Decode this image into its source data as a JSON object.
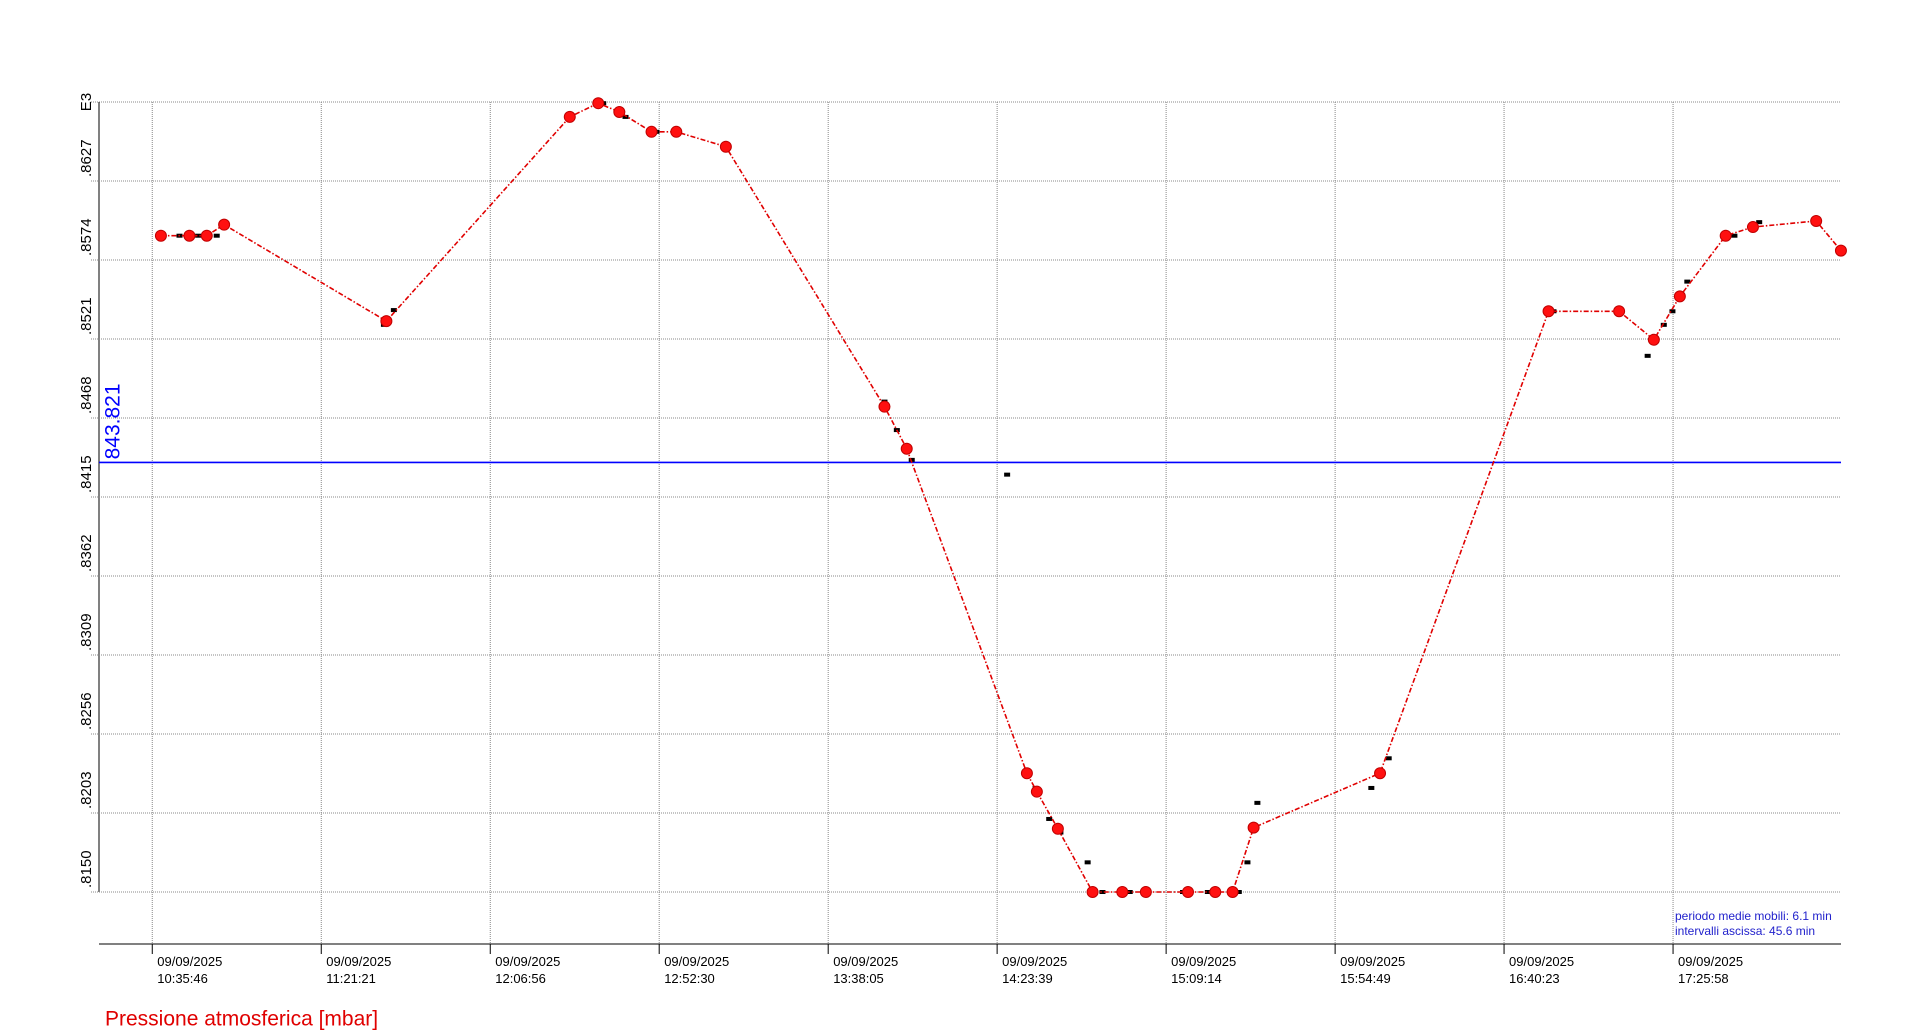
{
  "chart_data": {
    "type": "line",
    "y_multiplier": "E3",
    "ylim": [
      815.0,
      868.0
    ],
    "yticks": [
      {
        "value": 815.0,
        "label": ".8150"
      },
      {
        "value": 820.3,
        "label": ".8203"
      },
      {
        "value": 825.6,
        "label": ".8256"
      },
      {
        "value": 830.9,
        "label": ".8309"
      },
      {
        "value": 836.2,
        "label": ".8362"
      },
      {
        "value": 841.5,
        "label": ".8415"
      },
      {
        "value": 846.8,
        "label": ".8468"
      },
      {
        "value": 852.1,
        "label": ".8521"
      },
      {
        "value": 857.4,
        "label": ".8574"
      },
      {
        "value": 862.7,
        "label": ".8627"
      }
    ],
    "xlim": [
      "2025-09-09T10:21:24",
      "2025-09-09T18:11:16"
    ],
    "xticks": [
      {
        "value": "2025-09-09T10:35:46",
        "label": "09/09/2025\n10:35:46"
      },
      {
        "value": "2025-09-09T11:21:21",
        "label": "09/09/2025\n11:21:21"
      },
      {
        "value": "2025-09-09T12:06:56",
        "label": "09/09/2025\n12:06:56"
      },
      {
        "value": "2025-09-09T12:52:30",
        "label": "09/09/2025\n12:52:30"
      },
      {
        "value": "2025-09-09T13:38:05",
        "label": "09/09/2025\n13:38:05"
      },
      {
        "value": "2025-09-09T14:23:39",
        "label": "09/09/2025\n14:23:39"
      },
      {
        "value": "2025-09-09T15:09:14",
        "label": "09/09/2025\n15:09:14"
      },
      {
        "value": "2025-09-09T15:54:49",
        "label": "09/09/2025\n15:54:49"
      },
      {
        "value": "2025-09-09T16:40:23",
        "label": "09/09/2025\n16:40:23"
      },
      {
        "value": "2025-09-09T17:25:58",
        "label": "09/09/2025\n17:25:58"
      }
    ],
    "grid": true,
    "reference_line": {
      "value": 843.821,
      "color": "#0000ff"
    },
    "annotations": [
      "periodo medie mobili: 6.1 min",
      "intervalli ascissa: 45.6 min"
    ],
    "series": [
      {
        "name": "Pressione atmosferica [mbar]",
        "color": "#e00000",
        "line": true,
        "x": [
          "2025-09-09T10:38:06",
          "2025-09-09T10:45:47",
          "2025-09-09T10:50:28",
          "2025-09-09T10:55:09",
          "2025-09-09T11:38:55",
          "2025-09-09T12:28:23",
          "2025-09-09T12:36:04",
          "2025-09-09T12:41:45",
          "2025-09-09T12:50:26",
          "2025-09-09T12:57:07",
          "2025-09-09T13:10:29",
          "2025-09-09T13:53:16",
          "2025-09-09T13:59:16",
          "2025-09-09T14:31:41",
          "2025-09-09T14:34:22",
          "2025-09-09T14:40:02",
          "2025-09-09T14:49:24",
          "2025-09-09T14:57:25",
          "2025-09-09T15:03:46",
          "2025-09-09T15:15:08",
          "2025-09-09T15:22:29",
          "2025-09-09T15:27:10",
          "2025-09-09T15:32:50",
          "2025-09-09T16:06:56",
          "2025-09-09T16:52:23",
          "2025-09-09T17:11:25",
          "2025-09-09T17:20:47",
          "2025-09-09T17:27:48",
          "2025-09-09T17:40:10",
          "2025-09-09T17:47:31",
          "2025-09-09T18:04:34",
          "2025-09-09T18:11:15"
        ],
        "values": [
          859.03,
          859.03,
          859.03,
          859.77,
          853.3,
          867.0,
          867.92,
          867.33,
          866.0,
          866.0,
          865.0,
          847.56,
          844.74,
          822.97,
          821.73,
          819.24,
          815.0,
          815.0,
          815.0,
          815.0,
          815.0,
          815.0,
          819.32,
          822.97,
          853.96,
          853.96,
          852.05,
          854.96,
          859.03,
          859.61,
          860.02,
          858.03
        ]
      },
      {
        "color": "#000000",
        "line": false,
        "x": [
          "2025-09-09T10:38:06",
          "2025-09-09T10:43:07",
          "2025-09-09T10:48:08",
          "2025-09-09T10:53:09",
          "2025-09-09T10:55:09",
          "2025-09-09T11:38:15",
          "2025-09-09T11:40:56",
          "2025-09-09T12:28:23",
          "2025-09-09T12:37:24",
          "2025-09-09T12:43:25",
          "2025-09-09T12:51:46",
          "2025-09-09T12:57:47",
          "2025-09-09T13:53:16",
          "2025-09-09T13:56:36",
          "2025-09-09T14:00:37",
          "2025-09-09T14:26:21",
          "2025-09-09T14:34:02",
          "2025-09-09T14:37:42",
          "2025-09-09T14:40:43",
          "2025-09-09T14:48:04",
          "2025-09-09T14:52:04",
          "2025-09-09T14:59:25",
          "2025-09-09T15:13:47",
          "2025-09-09T15:20:29",
          "2025-09-09T15:28:50",
          "2025-09-09T15:31:10",
          "2025-09-09T15:33:51",
          "2025-09-09T16:04:35",
          "2025-09-09T16:09:16",
          "2025-09-09T16:53:43",
          "2025-09-09T17:19:07",
          "2025-09-09T17:23:28",
          "2025-09-09T17:25:48",
          "2025-09-09T17:29:49",
          "2025-09-09T17:42:31",
          "2025-09-09T17:49:12"
        ],
        "values": [
          859.03,
          859.03,
          859.03,
          859.03,
          859.94,
          853.05,
          854.04,
          867.0,
          867.92,
          867.0,
          866.0,
          866.0,
          847.9,
          845.99,
          843.99,
          843.0,
          821.98,
          819.9,
          818.99,
          816.99,
          815.0,
          815.0,
          815.0,
          815.0,
          815.0,
          816.99,
          820.98,
          821.98,
          823.97,
          853.96,
          850.97,
          853.05,
          853.96,
          855.95,
          859.03,
          859.94
        ]
      }
    ]
  }
}
